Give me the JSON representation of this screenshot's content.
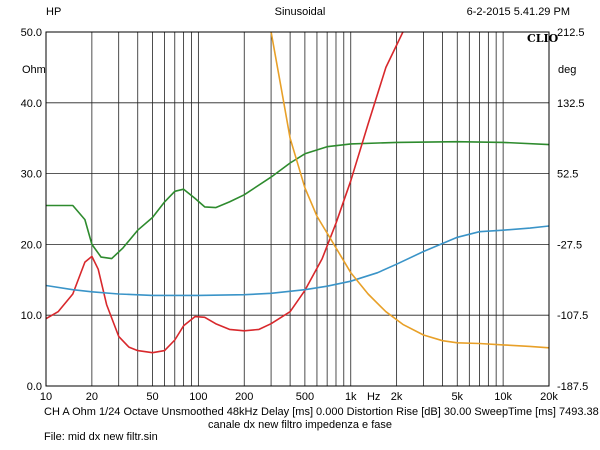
{
  "header": {
    "left": "HP",
    "center": "Sinusoidal",
    "right": "6-2-2015 5.41.29 PM",
    "logo": "CLIO"
  },
  "units": {
    "left": "Ohm",
    "right": "deg"
  },
  "footer": {
    "line1": "CH A   Ohm    1/24 Octave   Unsmoothed   48kHz   Delay [ms] 0.000    Distortion Rise [dB] 30.00    SweepTime [ms] 7493.38",
    "line2": "canale dx new filtro impedenza e fase",
    "line3": "File: mid dx new filtr.sin"
  },
  "colors": {
    "green": "#2e8b2e",
    "red": "#d8282c",
    "blue": "#3a94c8",
    "orange": "#e8a028",
    "grid": "#222222"
  },
  "chart_data": {
    "type": "line",
    "x_scale": "log",
    "xlim": [
      10,
      20000
    ],
    "ylim_left": [
      0,
      50
    ],
    "ylim_right": [
      -187.5,
      212.5
    ],
    "grid": true,
    "x_ticks": [
      {
        "v": 10,
        "label": "10"
      },
      {
        "v": 20,
        "label": "20"
      },
      {
        "v": 50,
        "label": "50"
      },
      {
        "v": 100,
        "label": "100"
      },
      {
        "v": 200,
        "label": "200"
      },
      {
        "v": 500,
        "label": "500"
      },
      {
        "v": 1000,
        "label": "1k"
      },
      {
        "v": 2000,
        "label": "2k"
      },
      {
        "v": 5000,
        "label": "5k"
      },
      {
        "v": 10000,
        "label": "10k"
      },
      {
        "v": 20000,
        "label": "20k"
      }
    ],
    "x_unit_label": "Hz",
    "y_left_ticks": [
      "0.0",
      "10.0",
      "20.0",
      "30.0",
      "40.0",
      "50.0"
    ],
    "y_right_ticks": [
      "-187.5",
      "-107.5",
      "-27.5",
      "52.5",
      "132.5",
      "212.5"
    ],
    "series": [
      {
        "color": "green",
        "axis": "right",
        "points": [
          [
            10,
            25.5
          ],
          [
            15,
            25.5
          ],
          [
            18,
            23.5
          ],
          [
            20,
            20
          ],
          [
            23,
            18.2
          ],
          [
            27,
            18
          ],
          [
            32,
            19.5
          ],
          [
            40,
            22
          ],
          [
            50,
            23.8
          ],
          [
            60,
            26
          ],
          [
            70,
            27.5
          ],
          [
            80,
            27.8
          ],
          [
            95,
            26.5
          ],
          [
            110,
            25.3
          ],
          [
            130,
            25.2
          ],
          [
            160,
            26
          ],
          [
            200,
            27
          ],
          [
            300,
            29.5
          ],
          [
            400,
            31.5
          ],
          [
            500,
            32.8
          ],
          [
            700,
            33.8
          ],
          [
            1000,
            34.2
          ],
          [
            2000,
            34.4
          ],
          [
            5000,
            34.5
          ],
          [
            10000,
            34.4
          ],
          [
            20000,
            34.1
          ]
        ]
      },
      {
        "color": "red",
        "axis": "left",
        "points": [
          [
            10,
            9.5
          ],
          [
            12,
            10.5
          ],
          [
            15,
            13
          ],
          [
            18,
            17.5
          ],
          [
            20,
            18.3
          ],
          [
            22,
            16.5
          ],
          [
            25,
            11.5
          ],
          [
            30,
            7
          ],
          [
            35,
            5.5
          ],
          [
            40,
            5
          ],
          [
            50,
            4.7
          ],
          [
            60,
            5
          ],
          [
            70,
            6.5
          ],
          [
            80,
            8.5
          ],
          [
            95,
            9.8
          ],
          [
            110,
            9.7
          ],
          [
            130,
            8.8
          ],
          [
            160,
            8
          ],
          [
            200,
            7.8
          ],
          [
            250,
            8
          ],
          [
            300,
            8.8
          ],
          [
            400,
            10.5
          ],
          [
            500,
            13.5
          ],
          [
            650,
            18
          ],
          [
            800,
            23
          ],
          [
            1000,
            29
          ],
          [
            1300,
            37
          ],
          [
            1700,
            45
          ],
          [
            2200,
            50
          ]
        ]
      },
      {
        "color": "blue",
        "axis": "left",
        "points": [
          [
            10,
            14.2
          ],
          [
            15,
            13.6
          ],
          [
            20,
            13.3
          ],
          [
            30,
            13
          ],
          [
            50,
            12.8
          ],
          [
            100,
            12.8
          ],
          [
            200,
            12.9
          ],
          [
            300,
            13.1
          ],
          [
            500,
            13.6
          ],
          [
            700,
            14.1
          ],
          [
            1000,
            14.8
          ],
          [
            1500,
            16
          ],
          [
            2000,
            17.2
          ],
          [
            3000,
            19
          ],
          [
            5000,
            21
          ],
          [
            7000,
            21.8
          ],
          [
            10000,
            22
          ],
          [
            15000,
            22.3
          ],
          [
            20000,
            22.6
          ]
        ]
      },
      {
        "color": "orange",
        "axis": "left",
        "points": [
          [
            300,
            50
          ],
          [
            350,
            42
          ],
          [
            400,
            35
          ],
          [
            500,
            28
          ],
          [
            600,
            24
          ],
          [
            800,
            19.5
          ],
          [
            1000,
            16
          ],
          [
            1300,
            13
          ],
          [
            1700,
            10.5
          ],
          [
            2200,
            8.7
          ],
          [
            3000,
            7.2
          ],
          [
            4000,
            6.4
          ],
          [
            5000,
            6.1
          ],
          [
            7000,
            6
          ],
          [
            10000,
            5.8
          ],
          [
            15000,
            5.6
          ],
          [
            20000,
            5.4
          ]
        ]
      }
    ]
  }
}
